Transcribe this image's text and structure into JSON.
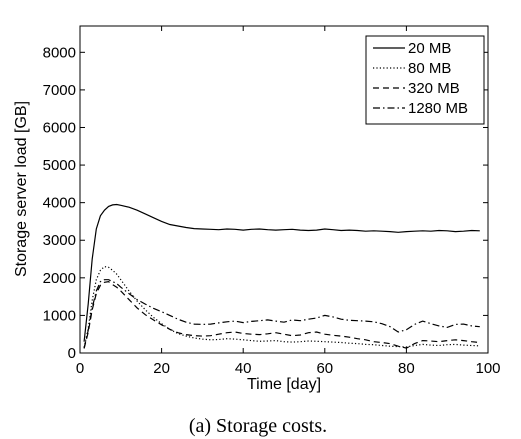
{
  "chart_data": {
    "type": "line",
    "title": "",
    "xlabel": "Time [day]",
    "ylabel": "Storage server load [GB]",
    "xlim": [
      0,
      100
    ],
    "ylim": [
      0,
      8700
    ],
    "xticks": [
      0,
      20,
      40,
      60,
      80,
      100
    ],
    "yticks": [
      0,
      1000,
      2000,
      3000,
      4000,
      5000,
      6000,
      7000,
      8000
    ],
    "grid": false,
    "legend_position": "top-right",
    "x": [
      1,
      2,
      3,
      4,
      5,
      6,
      7,
      8,
      9,
      10,
      12,
      14,
      16,
      18,
      20,
      22,
      24,
      26,
      28,
      30,
      32,
      34,
      36,
      38,
      40,
      42,
      44,
      46,
      48,
      50,
      52,
      54,
      56,
      58,
      60,
      62,
      64,
      66,
      68,
      70,
      72,
      74,
      76,
      78,
      80,
      82,
      84,
      86,
      88,
      90,
      92,
      94,
      96,
      98
    ],
    "series": [
      {
        "name": "20 MB",
        "style": "solid",
        "values": [
          300,
          1300,
          2500,
          3300,
          3650,
          3800,
          3900,
          3940,
          3950,
          3930,
          3880,
          3800,
          3700,
          3600,
          3500,
          3420,
          3380,
          3340,
          3310,
          3300,
          3290,
          3280,
          3300,
          3290,
          3270,
          3290,
          3300,
          3280,
          3270,
          3280,
          3290,
          3270,
          3260,
          3270,
          3300,
          3280,
          3260,
          3270,
          3260,
          3240,
          3250,
          3240,
          3230,
          3210,
          3230,
          3240,
          3250,
          3240,
          3260,
          3250,
          3230,
          3240,
          3260,
          3250
        ]
      },
      {
        "name": "80 MB",
        "style": "dotted",
        "values": [
          150,
          650,
          1400,
          1950,
          2200,
          2300,
          2280,
          2200,
          2100,
          1950,
          1650,
          1380,
          1150,
          950,
          780,
          630,
          520,
          450,
          400,
          370,
          350,
          360,
          380,
          370,
          350,
          330,
          310,
          320,
          330,
          300,
          290,
          300,
          320,
          310,
          300,
          290,
          280,
          260,
          250,
          230,
          220,
          200,
          180,
          170,
          160,
          200,
          230,
          210,
          200,
          220,
          230,
          210,
          200,
          190
        ]
      },
      {
        "name": "320 MB",
        "style": "dashed",
        "values": [
          120,
          550,
          1150,
          1580,
          1800,
          1880,
          1900,
          1820,
          1750,
          1650,
          1420,
          1200,
          1020,
          880,
          750,
          630,
          540,
          490,
          460,
          450,
          460,
          500,
          540,
          560,
          520,
          500,
          490,
          510,
          540,
          500,
          460,
          480,
          540,
          560,
          500,
          470,
          450,
          420,
          380,
          350,
          300,
          280,
          250,
          180,
          130,
          250,
          330,
          320,
          300,
          330,
          350,
          330,
          300,
          280
        ]
      },
      {
        "name": "1280 MB",
        "style": "dashdot",
        "values": [
          130,
          600,
          1200,
          1650,
          1900,
          1950,
          1950,
          1900,
          1850,
          1750,
          1580,
          1420,
          1300,
          1190,
          1100,
          1000,
          900,
          820,
          770,
          760,
          770,
          800,
          830,
          850,
          810,
          840,
          860,
          880,
          850,
          820,
          880,
          860,
          900,
          930,
          1000,
          960,
          900,
          870,
          860,
          850,
          830,
          780,
          700,
          560,
          620,
          760,
          850,
          780,
          720,
          680,
          760,
          770,
          720,
          700
        ]
      }
    ]
  },
  "caption": "(a)  Storage costs."
}
